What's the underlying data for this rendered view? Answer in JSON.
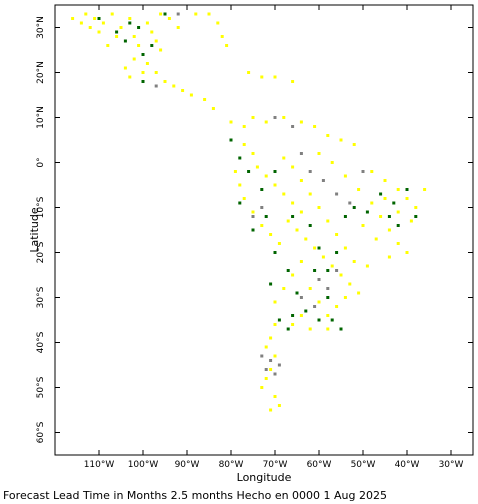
{
  "chart_data": {
    "type": "scatter",
    "xlabel": "Longitude",
    "ylabel": "Latitude",
    "xlim": [
      -120,
      -25
    ],
    "ylim": [
      -65,
      35
    ],
    "grid": false,
    "legend": "none",
    "x_ticks": [
      {
        "value": -110,
        "label": "110°W"
      },
      {
        "value": -100,
        "label": "100°W"
      },
      {
        "value": -90,
        "label": "90°W"
      },
      {
        "value": -80,
        "label": "80°W"
      },
      {
        "value": -70,
        "label": "70°W"
      },
      {
        "value": -60,
        "label": "60°W"
      },
      {
        "value": -50,
        "label": "50°W"
      },
      {
        "value": -40,
        "label": "40°W"
      },
      {
        "value": -30,
        "label": "30°W"
      }
    ],
    "y_ticks": [
      {
        "value": 30,
        "label": "30°N"
      },
      {
        "value": 20,
        "label": "20°N"
      },
      {
        "value": 10,
        "label": "10°N"
      },
      {
        "value": 0,
        "label": "0°"
      },
      {
        "value": -10,
        "label": "10°S"
      },
      {
        "value": -20,
        "label": "20°S"
      },
      {
        "value": -30,
        "label": "30°S"
      },
      {
        "value": -40,
        "label": "40°S"
      },
      {
        "value": -50,
        "label": "50°S"
      },
      {
        "value": -60,
        "label": "60°S"
      }
    ],
    "series": [
      {
        "color": "#ffff00",
        "points": [
          [
            -116,
            32
          ],
          [
            -114,
            31
          ],
          [
            -113,
            33
          ],
          [
            -111,
            32
          ],
          [
            -109,
            31
          ],
          [
            -107,
            33
          ],
          [
            -105,
            30
          ],
          [
            -103,
            32
          ],
          [
            -102,
            28
          ],
          [
            -101,
            26
          ],
          [
            -99,
            31
          ],
          [
            -98,
            29
          ],
          [
            -97,
            27
          ],
          [
            -96,
            25
          ],
          [
            -99,
            22
          ],
          [
            -100,
            20
          ],
          [
            -102,
            23
          ],
          [
            -104,
            21
          ],
          [
            -97,
            20
          ],
          [
            -95,
            18
          ],
          [
            -93,
            17
          ],
          [
            -91,
            16
          ],
          [
            -89,
            15
          ],
          [
            -86,
            14
          ],
          [
            -84,
            12
          ],
          [
            -106,
            28
          ],
          [
            -108,
            26
          ],
          [
            -110,
            29
          ],
          [
            -112,
            30
          ],
          [
            -88,
            33
          ],
          [
            -85,
            33
          ],
          [
            -83,
            31
          ],
          [
            -82,
            28
          ],
          [
            -81,
            26
          ],
          [
            -96,
            33
          ],
          [
            -94,
            32
          ],
          [
            -92,
            30
          ],
          [
            -103,
            19
          ],
          [
            -76,
            20
          ],
          [
            -73,
            19
          ],
          [
            -70,
            19
          ],
          [
            -66,
            18
          ],
          [
            -80,
            9
          ],
          [
            -77,
            8
          ],
          [
            -75,
            10
          ],
          [
            -72,
            9
          ],
          [
            -68,
            10
          ],
          [
            -64,
            9
          ],
          [
            -61,
            8
          ],
          [
            -58,
            6
          ],
          [
            -55,
            5
          ],
          [
            -52,
            4
          ],
          [
            -77,
            4
          ],
          [
            -75,
            2
          ],
          [
            -74,
            -1
          ],
          [
            -72,
            -3
          ],
          [
            -70,
            -5
          ],
          [
            -68,
            -7
          ],
          [
            -66,
            -9
          ],
          [
            -64,
            -11
          ],
          [
            -79,
            -2
          ],
          [
            -78,
            -5
          ],
          [
            -77,
            -8
          ],
          [
            -75,
            -11
          ],
          [
            -73,
            -14
          ],
          [
            -71,
            -16
          ],
          [
            -69,
            -18
          ],
          [
            -67,
            -13
          ],
          [
            -65,
            -15
          ],
          [
            -63,
            -17
          ],
          [
            -61,
            -19
          ],
          [
            -59,
            -21
          ],
          [
            -57,
            -23
          ],
          [
            -55,
            -25
          ],
          [
            -53,
            -27
          ],
          [
            -51,
            -29
          ],
          [
            -52,
            -22
          ],
          [
            -54,
            -19
          ],
          [
            -56,
            -16
          ],
          [
            -58,
            -13
          ],
          [
            -60,
            -10
          ],
          [
            -62,
            -7
          ],
          [
            -64,
            -4
          ],
          [
            -66,
            -1
          ],
          [
            -68,
            1
          ],
          [
            -60,
            2
          ],
          [
            -57,
            0
          ],
          [
            -54,
            -3
          ],
          [
            -51,
            -6
          ],
          [
            -48,
            -9
          ],
          [
            -46,
            -12
          ],
          [
            -44,
            -15
          ],
          [
            -42,
            -18
          ],
          [
            -40,
            -20
          ],
          [
            -48,
            -2
          ],
          [
            -45,
            -4
          ],
          [
            -42,
            -6
          ],
          [
            -40,
            -8
          ],
          [
            -38,
            -10
          ],
          [
            -36,
            -6
          ],
          [
            -39,
            -13
          ],
          [
            -42,
            -11
          ],
          [
            -45,
            -8
          ],
          [
            -50,
            -14
          ],
          [
            -47,
            -17
          ],
          [
            -44,
            -21
          ],
          [
            -49,
            -23
          ],
          [
            -64,
            -22
          ],
          [
            -66,
            -25
          ],
          [
            -68,
            -28
          ],
          [
            -70,
            -31
          ],
          [
            -62,
            -28
          ],
          [
            -60,
            -31
          ],
          [
            -58,
            -34
          ],
          [
            -56,
            -32
          ],
          [
            -54,
            -30
          ],
          [
            -64,
            -34
          ],
          [
            -66,
            -36
          ],
          [
            -70,
            -36
          ],
          [
            -71,
            -39
          ],
          [
            -72,
            -41
          ],
          [
            -70,
            -43
          ],
          [
            -71,
            -46
          ],
          [
            -72,
            -48
          ],
          [
            -73,
            -50
          ],
          [
            -70,
            -52
          ],
          [
            -69,
            -54
          ],
          [
            -71,
            -55
          ],
          [
            -62,
            -37
          ],
          [
            -58,
            -37
          ]
        ]
      },
      {
        "color": "#006400",
        "points": [
          [
            -110,
            32
          ],
          [
            -106,
            29
          ],
          [
            -104,
            27
          ],
          [
            -101,
            30
          ],
          [
            -100,
            24
          ],
          [
            -98,
            26
          ],
          [
            -103,
            31
          ],
          [
            -95,
            33
          ],
          [
            -100,
            18
          ],
          [
            -80,
            5
          ],
          [
            -78,
            1
          ],
          [
            -76,
            -2
          ],
          [
            -73,
            -6
          ],
          [
            -70,
            -2
          ],
          [
            -66,
            -12
          ],
          [
            -62,
            -14
          ],
          [
            -60,
            -19
          ],
          [
            -58,
            -24
          ],
          [
            -56,
            -20
          ],
          [
            -54,
            -12
          ],
          [
            -52,
            -10
          ],
          [
            -49,
            -11
          ],
          [
            -46,
            -7
          ],
          [
            -43,
            -9
          ],
          [
            -40,
            -6
          ],
          [
            -38,
            -12
          ],
          [
            -44,
            -12
          ],
          [
            -42,
            -14
          ],
          [
            -67,
            -24
          ],
          [
            -65,
            -29
          ],
          [
            -61,
            -24
          ],
          [
            -63,
            -33
          ],
          [
            -60,
            -35
          ],
          [
            -58,
            -30
          ],
          [
            -66,
            -34
          ],
          [
            -69,
            -35
          ],
          [
            -67,
            -37
          ],
          [
            -71,
            -27
          ],
          [
            -75,
            -15
          ],
          [
            -78,
            -9
          ],
          [
            -72,
            -12
          ],
          [
            -70,
            -20
          ],
          [
            -57,
            -35
          ],
          [
            -55,
            -37
          ]
        ]
      },
      {
        "color": "#808080",
        "points": [
          [
            -92,
            33
          ],
          [
            -97,
            17
          ],
          [
            -70,
            10
          ],
          [
            -66,
            8
          ],
          [
            -64,
            2
          ],
          [
            -62,
            -2
          ],
          [
            -59,
            -4
          ],
          [
            -56,
            -7
          ],
          [
            -53,
            -9
          ],
          [
            -50,
            -2
          ],
          [
            -75,
            -12
          ],
          [
            -73,
            -10
          ],
          [
            -60,
            -26
          ],
          [
            -58,
            -28
          ],
          [
            -56,
            -24
          ],
          [
            -61,
            -32
          ],
          [
            -64,
            -30
          ],
          [
            -71,
            -44
          ],
          [
            -72,
            -46
          ],
          [
            -70,
            -47
          ],
          [
            -73,
            -43
          ],
          [
            -69,
            -45
          ]
        ]
      }
    ]
  },
  "caption": "Forecast Lead Time in Months 2.5 months Hecho en 0000 1 Aug 2025"
}
